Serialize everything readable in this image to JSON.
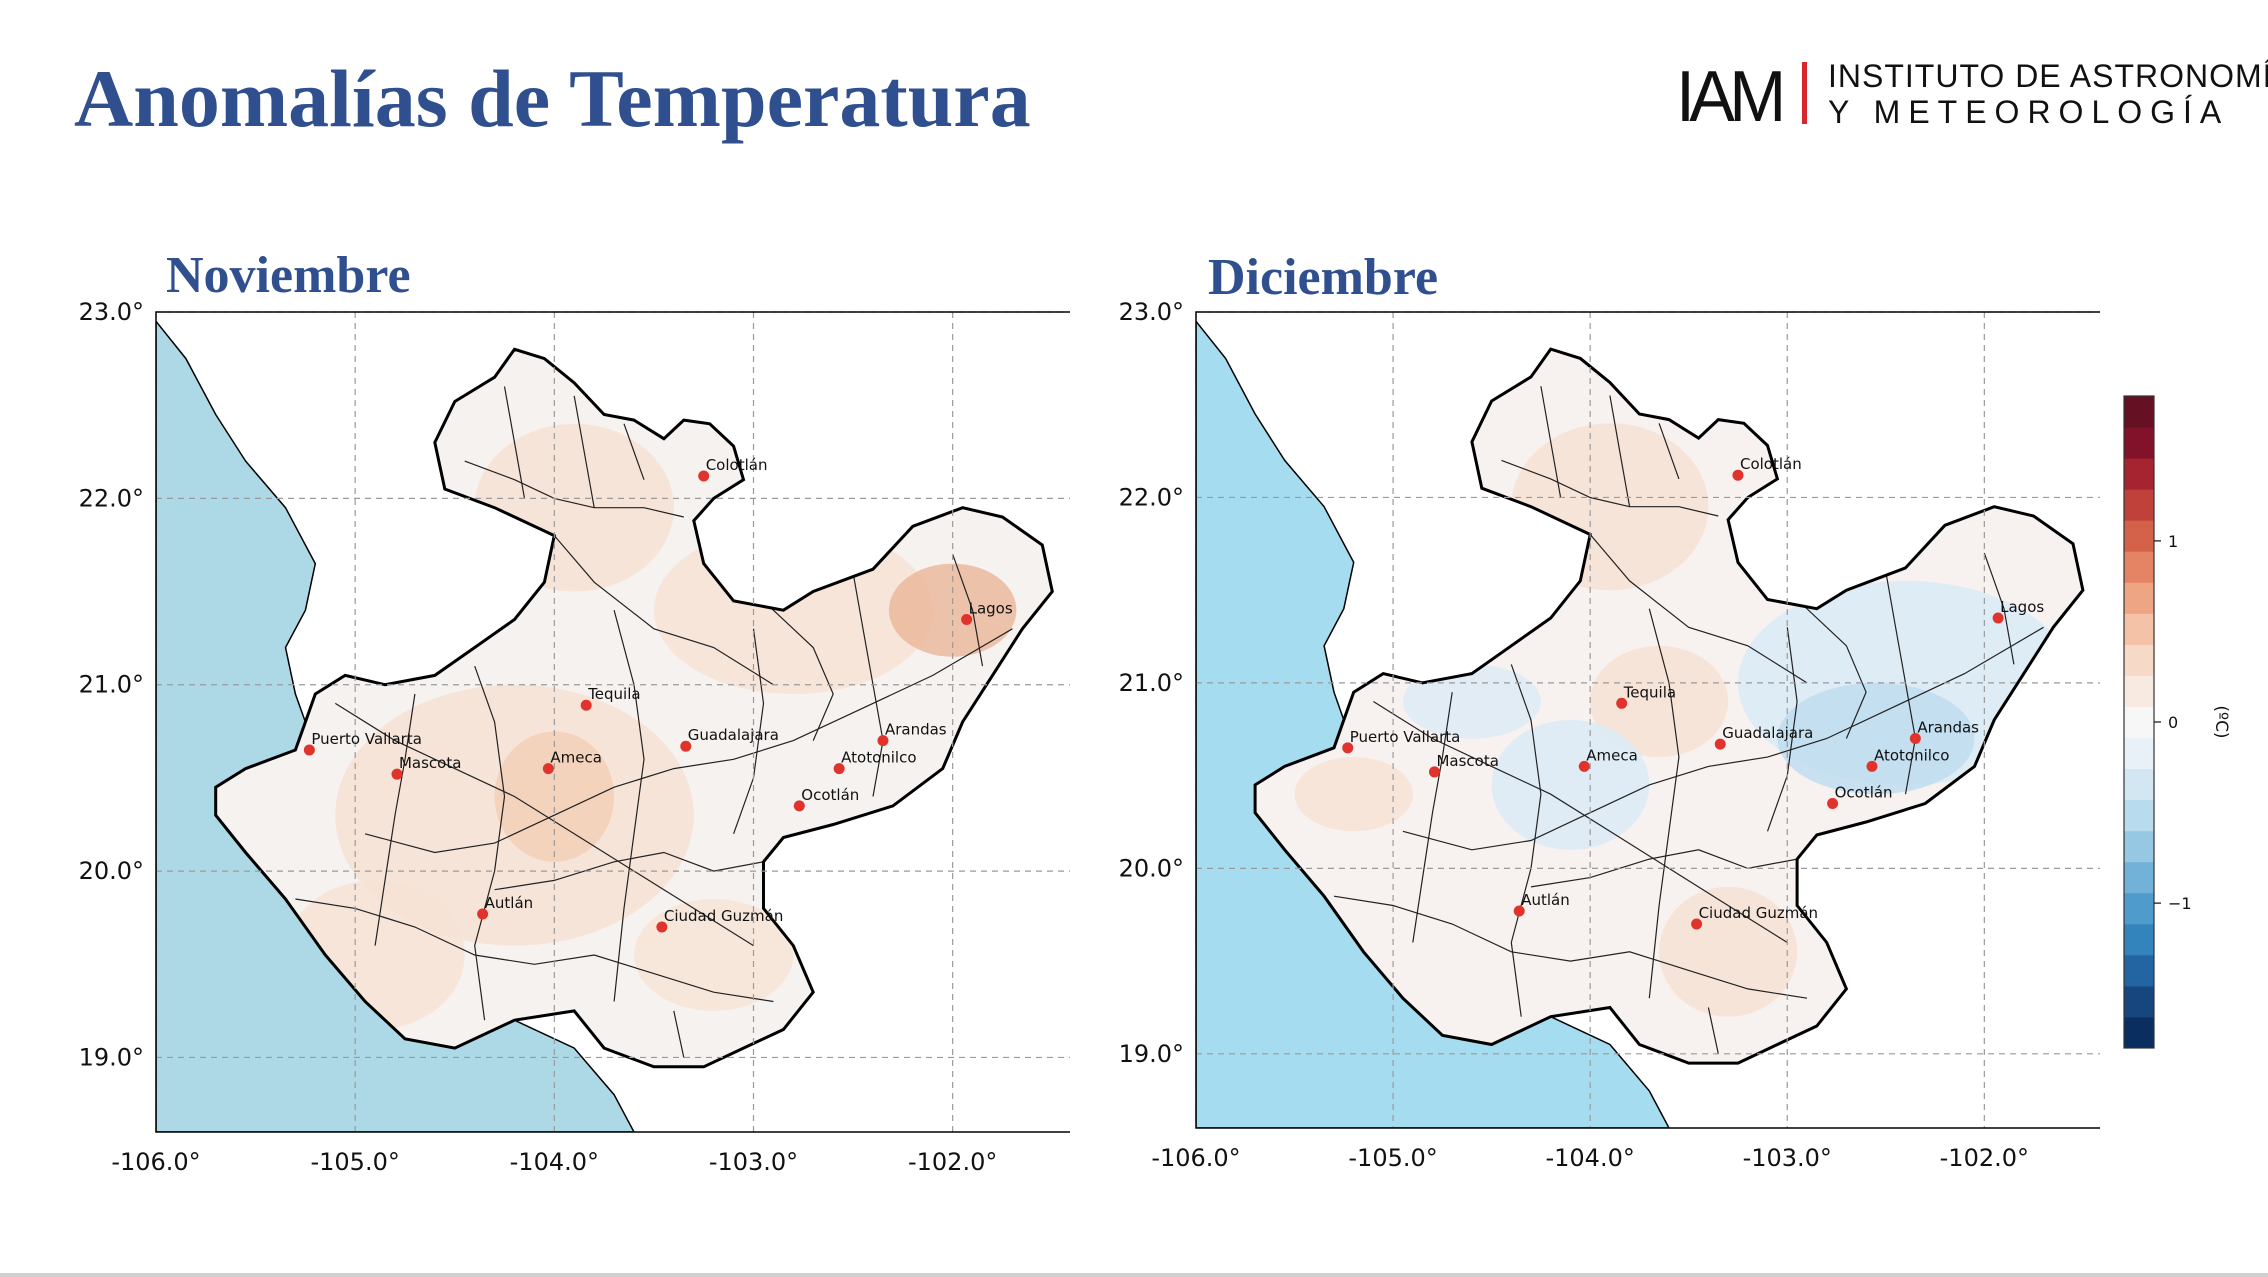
{
  "slide": {
    "title": "Anomalías de Temperatura"
  },
  "logo": {
    "mark": "IAM",
    "line1": "INSTITUTO DE ASTRONOMÍA",
    "line2": "Y METEOROLOGÍA"
  },
  "colors": {
    "title": "#2f4f8f",
    "ocean_noviembre": "#add8e6",
    "ocean_diciembre": "#a6dcef",
    "station": "#e0332c",
    "warm_light": "#f7e3d6",
    "warm_mid": "#f2c4a8",
    "cool_light": "#dcebf6",
    "cool_mid": "#bcdcef"
  },
  "maps": [
    {
      "month": "Noviembre",
      "lat_ticks": [
        "23.0°",
        "22.0°",
        "21.0°",
        "20.0°",
        "19.0°"
      ],
      "lon_ticks": [
        "-106.0°",
        "-105.0°",
        "-104.0°",
        "-103.0°",
        "-102.0°"
      ],
      "lon_range": [
        -106.0,
        -101.2
      ],
      "lat_range": [
        18.6,
        23.0
      ],
      "stations": [
        {
          "name": "Colotlán",
          "lon": -103.25,
          "lat": 22.12
        },
        {
          "name": "Lagos",
          "lon": -101.93,
          "lat": 21.35
        },
        {
          "name": "Tequila",
          "lon": -103.84,
          "lat": 20.89
        },
        {
          "name": "Puerto Vallarta",
          "lon": -105.23,
          "lat": 20.65
        },
        {
          "name": "Guadalajara",
          "lon": -103.34,
          "lat": 20.67
        },
        {
          "name": "Arandas",
          "lon": -102.35,
          "lat": 20.7
        },
        {
          "name": "Mascota",
          "lon": -104.79,
          "lat": 20.52
        },
        {
          "name": "Ameca",
          "lon": -104.03,
          "lat": 20.55
        },
        {
          "name": "Atotonilco",
          "lon": -102.57,
          "lat": 20.55
        },
        {
          "name": "Ocotlán",
          "lon": -102.77,
          "lat": 20.35
        },
        {
          "name": "Autlán",
          "lon": -104.36,
          "lat": 19.77
        },
        {
          "name": "Ciudad Guzmán",
          "lon": -103.46,
          "lat": 19.7
        }
      ]
    },
    {
      "month": "Diciembre",
      "lat_ticks": [
        "23.0°",
        "22.0°",
        "21.0°",
        "20.0°",
        "19.0°"
      ],
      "lon_ticks": [
        "-106.0°",
        "-105.0°",
        "-104.0°",
        "-103.0°",
        "-102.0°"
      ],
      "lon_range": [
        -106.0,
        -101.2
      ],
      "lat_range": [
        18.6,
        23.0
      ],
      "stations": [
        {
          "name": "Colotlán",
          "lon": -103.25,
          "lat": 22.12
        },
        {
          "name": "Lagos",
          "lon": -101.93,
          "lat": 21.35
        },
        {
          "name": "Tequila",
          "lon": -103.84,
          "lat": 20.89
        },
        {
          "name": "Puerto Vallarta",
          "lon": -105.23,
          "lat": 20.65
        },
        {
          "name": "Guadalajara",
          "lon": -103.34,
          "lat": 20.67
        },
        {
          "name": "Arandas",
          "lon": -102.35,
          "lat": 20.7
        },
        {
          "name": "Mascota",
          "lon": -104.79,
          "lat": 20.52
        },
        {
          "name": "Ameca",
          "lon": -104.03,
          "lat": 20.55
        },
        {
          "name": "Atotonilco",
          "lon": -102.57,
          "lat": 20.55
        },
        {
          "name": "Ocotlán",
          "lon": -102.77,
          "lat": 20.35
        },
        {
          "name": "Autlán",
          "lon": -104.36,
          "lat": 19.77
        },
        {
          "name": "Ciudad Guzmán",
          "lon": -103.46,
          "lat": 19.7
        }
      ]
    }
  ],
  "colorbar": {
    "unit": "(ºC)",
    "ticks": [
      {
        "label": "1",
        "value": 1
      },
      {
        "label": "0",
        "value": 0
      },
      {
        "label": "−1",
        "value": -1
      }
    ],
    "range": [
      -1.8,
      1.8
    ],
    "colors": [
      "#0b2e61",
      "#17467f",
      "#2364a3",
      "#3383bd",
      "#4f9bcb",
      "#72b2d9",
      "#96c8e4",
      "#b8dbee",
      "#d3e7f3",
      "#e8f1f8",
      "#f7f7f7",
      "#f8eae1",
      "#f7d9c7",
      "#f4c2a7",
      "#eea584",
      "#e48464",
      "#d4624a",
      "#c0413a",
      "#a52430",
      "#82112a",
      "#661024"
    ]
  }
}
